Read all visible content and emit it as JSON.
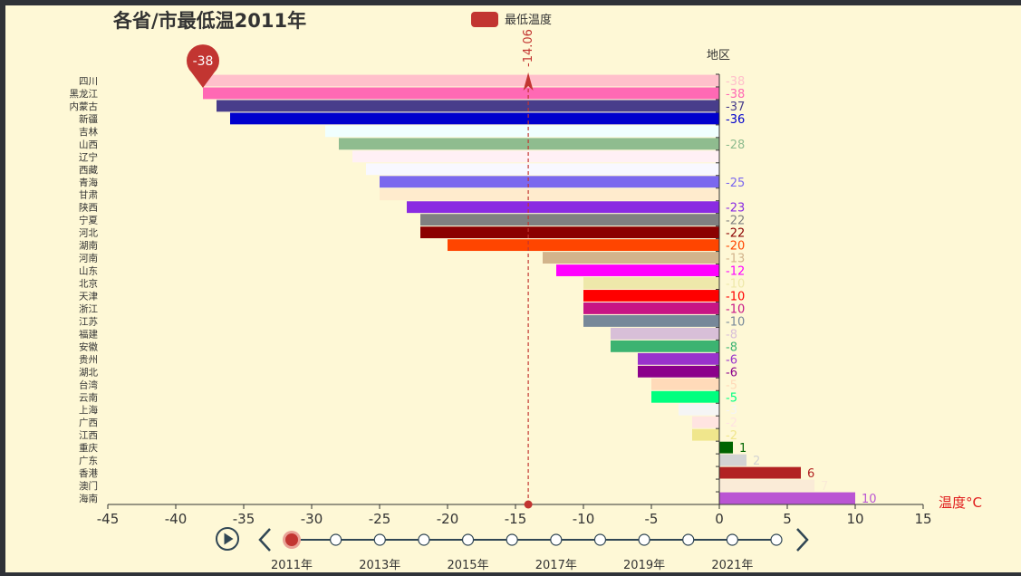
{
  "chart_data": {
    "type": "bar",
    "orientation": "horizontal",
    "title": "各省/市最低温2011年",
    "legend": {
      "label": "最低温度",
      "color": "#c23531",
      "position": "top-center"
    },
    "ylabel": "地区",
    "xlabel": "温度°C",
    "xlim": [
      -45,
      15
    ],
    "xticks": [
      -45,
      -40,
      -35,
      -30,
      -25,
      -20,
      -15,
      -10,
      -5,
      0,
      5,
      10,
      15
    ],
    "grid": false,
    "background": "#fef8d6",
    "mark_point": {
      "label": "-38",
      "value": -38,
      "category": "黑龙江",
      "color": "#c23531"
    },
    "mark_line": {
      "label": "-14.06",
      "value": -14.06,
      "color": "#c23531"
    },
    "categories": [
      "四川",
      "黑龙江",
      "内蒙古",
      "新疆",
      "吉林",
      "山西",
      "辽宁",
      "西藏",
      "青海",
      "甘肃",
      "陕西",
      "宁夏",
      "河北",
      "湖南",
      "河南",
      "山东",
      "北京",
      "天津",
      "浙江",
      "江苏",
      "福建",
      "安徽",
      "贵州",
      "湖北",
      "台湾",
      "云南",
      "上海",
      "广西",
      "江西",
      "重庆",
      "广东",
      "香港",
      "澳门",
      "海南"
    ],
    "values": [
      -38,
      -38,
      -37,
      -36,
      -29,
      -28,
      -27,
      -26,
      -25,
      -25,
      -23,
      -22,
      -22,
      -20,
      -13,
      -12,
      -10,
      -10,
      -10,
      -10,
      -8,
      -8,
      -6,
      -6,
      -5,
      -5,
      -3,
      -2,
      -2,
      1,
      2,
      6,
      7,
      10
    ],
    "value_labels": [
      "-38",
      "-38",
      "-37",
      "-36",
      "",
      "-28",
      "",
      "",
      "-25",
      "",
      "-23",
      "-22",
      "-22",
      "-20",
      "-13",
      "-12",
      "-10",
      "-10",
      "-10",
      "-10",
      "-8",
      "-8",
      "-6",
      "-6",
      "-5",
      "-5",
      "-3",
      "-2",
      "-2",
      "1",
      "2",
      "6",
      "7",
      "10"
    ],
    "colors": [
      "#ffc0cb",
      "#ff69b4",
      "#483d8b",
      "#0000cd",
      "#f0ffff",
      "#8fbc8f",
      "#fff0f5",
      "#f8f8ff",
      "#7b68ee",
      "#ffebcd",
      "#8a2be2",
      "#808080",
      "#8b0000",
      "#ff4500",
      "#d2b48c",
      "#ff00ff",
      "#eee8aa",
      "#ff0000",
      "#c71585",
      "#778899",
      "#d8bfd8",
      "#3cb371",
      "#9932cc",
      "#8b008b",
      "#ffdab9",
      "#00ff7f",
      "#f5f5f5",
      "#ffe4e1",
      "#f0e68c",
      "#006400",
      "#d3d3d3",
      "#b22222",
      "#faebd7",
      "#ba55d3"
    ]
  },
  "timeline": {
    "play_icon": "play-icon",
    "prev_icon": "chevron-left-icon",
    "next_icon": "chevron-right-icon",
    "current_index": 0,
    "points": 12,
    "labels": [
      "2011年",
      "2013年",
      "2015年",
      "2017年",
      "2019年",
      "2021年"
    ]
  }
}
